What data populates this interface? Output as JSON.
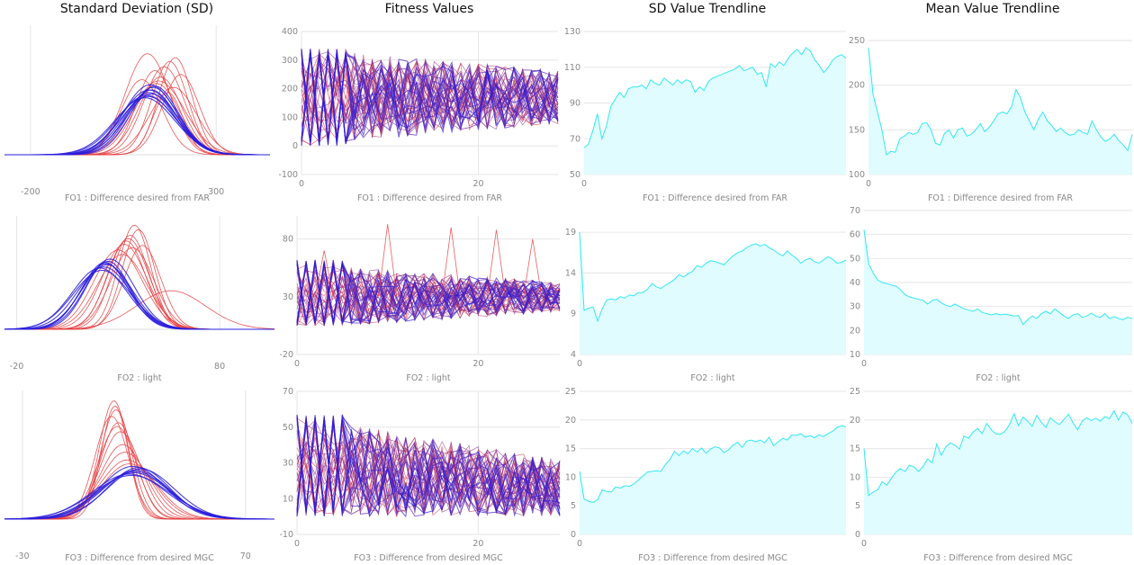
{
  "titles": {
    "sd": "Standard Deviation (SD)",
    "fitness": "Fitness Values",
    "sd_trend": "SD Value Trendline",
    "mean_trend": "Mean Value Trendline"
  },
  "colors": {
    "red": "#e5383b",
    "blue": "#2a1cdc",
    "trend_line": "#33e8f2",
    "trend_fill": "#e0fcfe",
    "grid": "#e6e6e6",
    "tick": "#888888"
  },
  "chart_data": [
    {
      "id": "sd-fo1",
      "type": "line",
      "panel": "sd",
      "row": 0,
      "xlabel": "FO1 : Difference desired from FAR",
      "xlim": [
        -270,
        445
      ],
      "xticks": [
        "-200",
        "300"
      ],
      "yticks": [],
      "curves": [
        {
          "mean": 117,
          "sd": 75,
          "peak": 0.45,
          "color": "blue"
        },
        {
          "mean": 120,
          "sd": 70,
          "peak": 0.48,
          "color": "blue"
        },
        {
          "mean": 125,
          "sd": 68,
          "peak": 0.5,
          "color": "blue"
        },
        {
          "mean": 113,
          "sd": 78,
          "peak": 0.46,
          "color": "blue"
        },
        {
          "mean": 130,
          "sd": 66,
          "peak": 0.52,
          "color": "blue"
        },
        {
          "mean": 108,
          "sd": 80,
          "peak": 0.44,
          "color": "blue"
        },
        {
          "mean": 122,
          "sd": 72,
          "peak": 0.54,
          "color": "blue"
        },
        {
          "mean": 135,
          "sd": 64,
          "peak": 0.53,
          "color": "blue"
        },
        {
          "mean": 119,
          "sd": 74,
          "peak": 0.5,
          "color": "blue"
        },
        {
          "mean": 126,
          "sd": 70,
          "peak": 0.47,
          "color": "blue"
        },
        {
          "mean": 140,
          "sd": 62,
          "peak": 0.55,
          "color": "red"
        },
        {
          "mean": 160,
          "sd": 55,
          "peak": 0.68,
          "color": "red"
        },
        {
          "mean": 175,
          "sd": 48,
          "peak": 0.72,
          "color": "red"
        },
        {
          "mean": 190,
          "sd": 45,
          "peak": 0.75,
          "color": "red"
        },
        {
          "mean": 115,
          "sd": 60,
          "peak": 0.78,
          "color": "red"
        },
        {
          "mean": 150,
          "sd": 58,
          "peak": 0.6,
          "color": "red"
        },
        {
          "mean": 205,
          "sd": 50,
          "peak": 0.62,
          "color": "red"
        },
        {
          "mean": 100,
          "sd": 55,
          "peak": 0.58,
          "color": "red"
        },
        {
          "mean": 170,
          "sd": 40,
          "peak": 0.48,
          "color": "red"
        },
        {
          "mean": 135,
          "sd": 50,
          "peak": 0.65,
          "color": "red"
        },
        {
          "mean": 185,
          "sd": 62,
          "peak": 0.52,
          "color": "red"
        },
        {
          "mean": 145,
          "sd": 70,
          "peak": 0.57,
          "color": "red"
        }
      ]
    },
    {
      "id": "fit-fo1",
      "type": "line",
      "panel": "fitness",
      "row": 0,
      "xlabel": "FO1 : Difference desired from FAR",
      "xlim": [
        0,
        29
      ],
      "ylim": [
        -100,
        400
      ],
      "xticks": [
        0,
        20
      ],
      "yticks": [
        -100,
        0,
        100,
        200,
        300,
        400
      ],
      "bands": {
        "lo": 0,
        "hi": 340,
        "center_start": 170,
        "center_end": 170,
        "spread_end": 0.55,
        "seed": 11
      }
    },
    {
      "id": "sdt-fo1",
      "type": "area",
      "panel": "sd_trend",
      "row": 0,
      "xlabel": "FO1 : Difference desired from FAR",
      "xlim": [
        0,
        59
      ],
      "ylim": [
        50,
        130
      ],
      "xticks": [
        0
      ],
      "yticks": [
        50,
        70,
        90,
        110,
        130
      ],
      "y": [
        65,
        67,
        75,
        84,
        70,
        77,
        88,
        92,
        96,
        93,
        98,
        99,
        99,
        100,
        98,
        103,
        101,
        100,
        104,
        102,
        100,
        103,
        101,
        103,
        102,
        96,
        99,
        97,
        102,
        104,
        105,
        106,
        107,
        108,
        109,
        111,
        108,
        109,
        110,
        106,
        107,
        99,
        112,
        110,
        113,
        111,
        115,
        118,
        120,
        117,
        121,
        119,
        114,
        111,
        107,
        110,
        114,
        116,
        117,
        115
      ]
    },
    {
      "id": "mt-fo1",
      "type": "area",
      "panel": "mean_trend",
      "row": 0,
      "xlabel": "FO1 : Difference desired from FAR",
      "xlim": [
        0,
        59
      ],
      "ylim": [
        100,
        250
      ],
      "xticks": [
        0
      ],
      "yticks": [
        100,
        150,
        200,
        250
      ],
      "y": [
        242,
        190,
        170,
        150,
        122,
        126,
        125,
        140,
        143,
        147,
        145,
        147,
        157,
        158,
        150,
        135,
        133,
        146,
        150,
        141,
        150,
        152,
        143,
        145,
        150,
        157,
        148,
        153,
        160,
        168,
        170,
        168,
        176,
        195,
        186,
        170,
        160,
        150,
        162,
        170,
        160,
        155,
        148,
        152,
        147,
        144,
        145,
        150,
        147,
        145,
        160,
        150,
        142,
        137,
        140,
        145,
        138,
        133,
        127,
        145
      ]
    },
    {
      "id": "sd-fo2",
      "type": "line",
      "panel": "sd",
      "row": 1,
      "xlabel": "FO2 : light",
      "xlim": [
        -26,
        107
      ],
      "xticks": [
        "-20",
        "80"
      ],
      "yticks": [],
      "curves": [
        {
          "mean": 23,
          "sd": 13,
          "peak": 0.55,
          "color": "blue"
        },
        {
          "mean": 24,
          "sd": 12,
          "peak": 0.58,
          "color": "blue"
        },
        {
          "mean": 22,
          "sd": 14,
          "peak": 0.52,
          "color": "blue"
        },
        {
          "mean": 25,
          "sd": 11,
          "peak": 0.6,
          "color": "blue"
        },
        {
          "mean": 21,
          "sd": 13.5,
          "peak": 0.54,
          "color": "blue"
        },
        {
          "mean": 24.5,
          "sd": 12.5,
          "peak": 0.57,
          "color": "blue"
        },
        {
          "mean": 26,
          "sd": 12,
          "peak": 0.62,
          "color": "blue"
        },
        {
          "mean": 23.5,
          "sd": 11.5,
          "peak": 0.59,
          "color": "blue"
        },
        {
          "mean": 30,
          "sd": 12,
          "peak": 0.7,
          "color": "red"
        },
        {
          "mean": 33,
          "sd": 11,
          "peak": 0.75,
          "color": "red"
        },
        {
          "mean": 36,
          "sd": 9,
          "peak": 0.83,
          "color": "red"
        },
        {
          "mean": 38,
          "sd": 8,
          "peak": 0.92,
          "color": "red"
        },
        {
          "mean": 40,
          "sd": 8,
          "peak": 0.88,
          "color": "red"
        },
        {
          "mean": 35,
          "sd": 10,
          "peak": 0.8,
          "color": "red"
        },
        {
          "mean": 32,
          "sd": 12,
          "peak": 0.66,
          "color": "red"
        },
        {
          "mean": 37,
          "sd": 10.5,
          "peak": 0.72,
          "color": "red"
        },
        {
          "mean": 42,
          "sd": 9,
          "peak": 0.74,
          "color": "red"
        },
        {
          "mean": 34,
          "sd": 9.5,
          "peak": 0.78,
          "color": "red"
        },
        {
          "mean": 56,
          "sd": 17,
          "peak": 0.34,
          "color": "red"
        }
      ]
    },
    {
      "id": "fit-fo2",
      "type": "line",
      "panel": "fitness",
      "row": 1,
      "xlabel": "FO2 : light",
      "xlim": [
        0,
        29
      ],
      "ylim": [
        -20,
        100
      ],
      "xticks": [
        0,
        20
      ],
      "yticks": [
        -20,
        30,
        80
      ],
      "bands": {
        "lo": 5,
        "hi": 62,
        "center_start": 30,
        "center_end": 30,
        "spread_end": 0.45,
        "seed": 23,
        "spikes": [
          [
            3,
            70
          ],
          [
            10,
            93
          ],
          [
            17,
            90
          ],
          [
            22,
            88
          ],
          [
            26,
            80
          ]
        ]
      }
    },
    {
      "id": "sdt-fo2",
      "type": "area",
      "panel": "sd_trend",
      "row": 1,
      "xlabel": "FO2 : light",
      "xlim": [
        0,
        59
      ],
      "ylim": [
        4,
        21
      ],
      "xticks": [
        0
      ],
      "yticks": [
        4,
        9,
        14,
        19
      ],
      "y": [
        19,
        9.4,
        9.7,
        9.8,
        8.1,
        9.6,
        10.7,
        10.8,
        10.7,
        11.1,
        10.9,
        11.3,
        11.2,
        11.6,
        11.6,
        12.0,
        12.7,
        12.3,
        12.1,
        12.5,
        12.8,
        13.2,
        13.8,
        13.5,
        13.9,
        14.2,
        14.9,
        14.7,
        15.2,
        15.5,
        15.4,
        15.2,
        15.0,
        15.6,
        16.1,
        16.5,
        16.7,
        17.1,
        17.4,
        17.6,
        17.3,
        17.5,
        17.1,
        16.8,
        16.4,
        16.1,
        16.7,
        16.2,
        15.8,
        15.2,
        15.6,
        15.8,
        15.4,
        15.2,
        15.6,
        16.0,
        15.7,
        15.2,
        15.3,
        15.6
      ]
    },
    {
      "id": "mt-fo2",
      "type": "area",
      "panel": "mean_trend",
      "row": 1,
      "xlabel": "FO2 : light",
      "xlim": [
        0,
        59
      ],
      "ylim": [
        10,
        70
      ],
      "xticks": [
        0
      ],
      "yticks": [
        10,
        20,
        30,
        40,
        50,
        60,
        70
      ],
      "y": [
        62,
        48,
        44,
        41,
        40,
        39.5,
        39,
        38.5,
        37,
        35,
        34,
        33.5,
        33,
        32.5,
        31,
        32.5,
        33,
        31.5,
        30.5,
        30,
        31,
        30,
        29,
        28.5,
        28,
        29,
        27.5,
        27,
        26.5,
        27,
        26.5,
        26.8,
        26.5,
        26,
        26.2,
        22.5,
        24.5,
        26,
        25,
        27,
        28,
        27,
        29,
        27.5,
        26,
        25,
        26.5,
        27,
        25.5,
        26,
        27.2,
        26,
        25.5,
        27,
        25,
        25.8,
        25,
        24.5,
        25.5,
        25
      ]
    },
    {
      "id": "sd-fo3",
      "type": "line",
      "panel": "sd",
      "row": 2,
      "xlabel": "FO3 : Difference from desired MGC",
      "xlim": [
        -38,
        83
      ],
      "xticks": [
        "-30",
        "70"
      ],
      "yticks": [],
      "curves": [
        {
          "mean": 20,
          "sd": 16,
          "peak": 0.36,
          "color": "blue"
        },
        {
          "mean": 21,
          "sd": 15,
          "peak": 0.38,
          "color": "blue"
        },
        {
          "mean": 19,
          "sd": 17,
          "peak": 0.34,
          "color": "blue"
        },
        {
          "mean": 22,
          "sd": 14,
          "peak": 0.4,
          "color": "blue"
        },
        {
          "mean": 18,
          "sd": 16.5,
          "peak": 0.35,
          "color": "blue"
        },
        {
          "mean": 20.5,
          "sd": 15.5,
          "peak": 0.37,
          "color": "blue"
        },
        {
          "mean": 23,
          "sd": 15,
          "peak": 0.39,
          "color": "blue"
        },
        {
          "mean": 19.5,
          "sd": 14.5,
          "peak": 0.41,
          "color": "blue"
        },
        {
          "mean": 12,
          "sd": 7,
          "peak": 0.85,
          "color": "red"
        },
        {
          "mean": 11,
          "sd": 6.5,
          "peak": 0.92,
          "color": "red"
        },
        {
          "mean": 13,
          "sd": 8,
          "peak": 0.75,
          "color": "red"
        },
        {
          "mean": 14,
          "sd": 9,
          "peak": 0.68,
          "color": "red"
        },
        {
          "mean": 10,
          "sd": 7.5,
          "peak": 0.8,
          "color": "red"
        },
        {
          "mean": 15,
          "sd": 10,
          "peak": 0.58,
          "color": "red"
        },
        {
          "mean": 16,
          "sd": 11,
          "peak": 0.52,
          "color": "red"
        },
        {
          "mean": 12.5,
          "sd": 8.5,
          "peak": 0.72,
          "color": "red"
        },
        {
          "mean": 17,
          "sd": 12,
          "peak": 0.46,
          "color": "red"
        },
        {
          "mean": 11.5,
          "sd": 6,
          "peak": 0.88,
          "color": "red"
        },
        {
          "mean": 18,
          "sd": 12.5,
          "peak": 0.43,
          "color": "red"
        }
      ]
    },
    {
      "id": "fit-fo3",
      "type": "line",
      "panel": "fitness",
      "row": 2,
      "xlabel": "FO3 : Difference from desired MGC",
      "xlim": [
        0,
        29
      ],
      "ylim": [
        -10,
        70
      ],
      "xticks": [
        0,
        20
      ],
      "yticks": [
        -10,
        10,
        30,
        50,
        70
      ],
      "bands": {
        "lo": 0,
        "hi": 57,
        "center_start": 28,
        "center_end": 16,
        "spread_end": 0.55,
        "seed": 37
      }
    },
    {
      "id": "sdt-fo3",
      "type": "area",
      "panel": "sd_trend",
      "row": 2,
      "xlabel": "FO3 : Difference from desired MGC",
      "xlim": [
        0,
        59
      ],
      "ylim": [
        0,
        25
      ],
      "xticks": [
        0
      ],
      "yticks": [
        0,
        5,
        10,
        15,
        20,
        25
      ],
      "y": [
        11,
        6.2,
        5.8,
        5.6,
        6.1,
        7.8,
        7.5,
        7.4,
        8.3,
        8.1,
        8.5,
        8.4,
        8.8,
        9.5,
        10.2,
        10.9,
        11.0,
        11.1,
        11.0,
        12.2,
        13.1,
        14.5,
        13.8,
        14.6,
        14.1,
        15.0,
        14.4,
        15.1,
        14.2,
        14.9,
        15.3,
        15.1,
        14.3,
        14.8,
        15.6,
        16.1,
        15.2,
        16.3,
        16.5,
        16.2,
        16.5,
        16.0,
        17.0,
        15.5,
        16.2,
        16.8,
        16.5,
        17.4,
        17.3,
        17.6,
        17.0,
        17.3,
        16.9,
        17.4,
        17.1,
        17.6,
        18.0,
        18.7,
        19.0,
        18.8
      ]
    },
    {
      "id": "mt-fo3",
      "type": "area",
      "panel": "mean_trend",
      "row": 2,
      "xlabel": "FO3 : Difference from desired MGC",
      "xlim": [
        0,
        59
      ],
      "ylim": [
        0,
        25
      ],
      "xticks": [
        0
      ],
      "yticks": [
        0,
        5,
        10,
        15,
        20,
        25
      ],
      "y": [
        15,
        6.8,
        7.4,
        7.8,
        9.2,
        8.6,
        9.8,
        10.9,
        11.5,
        11.0,
        12.1,
        11.8,
        11.0,
        11.9,
        13.2,
        12.5,
        15.8,
        13.8,
        15.3,
        16.0,
        15.6,
        14.9,
        17.2,
        16.8,
        17.9,
        18.5,
        17.6,
        19.4,
        18.3,
        17.6,
        17.5,
        18.0,
        19.2,
        21.1,
        19.0,
        20.5,
        19.8,
        18.9,
        20.8,
        19.6,
        18.7,
        20.4,
        19.7,
        19.2,
        20.1,
        21.0,
        19.5,
        18.3,
        19.8,
        20.4,
        19.9,
        20.3,
        19.8,
        20.6,
        20.2,
        21.6,
        20.0,
        21.4,
        20.9,
        19.4
      ]
    }
  ]
}
